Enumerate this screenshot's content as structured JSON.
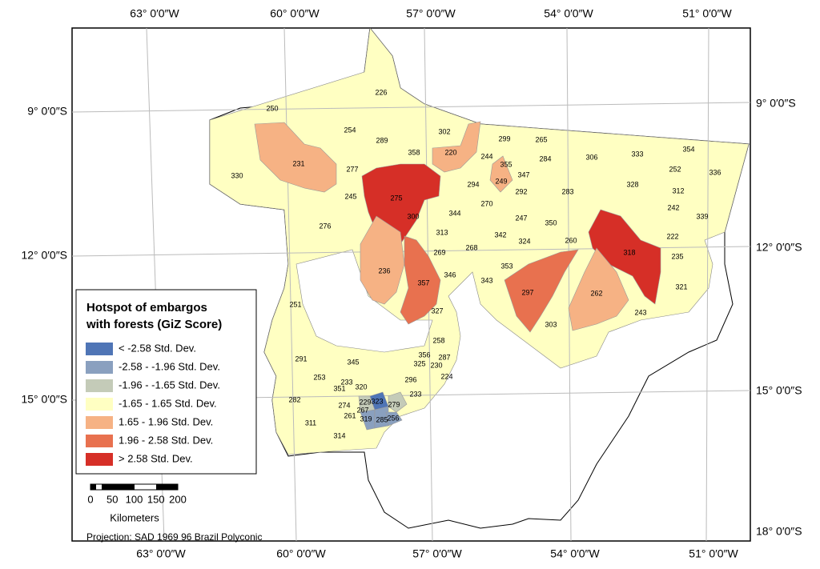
{
  "title_lines": [
    "Hotspot of embargos",
    "with forests (GiZ Score)"
  ],
  "legend": [
    {
      "label": "< -2.58 Std. Dev.",
      "color": "#4f75b6"
    },
    {
      "label": "-2.58 - -1.96 Std. Dev.",
      "color": "#8aa0bf"
    },
    {
      "label": "-1.96 - -1.65 Std. Dev.",
      "color": "#c4cbb8"
    },
    {
      "label": "-1.65 - 1.65 Std. Dev.",
      "color": "#ffffc2"
    },
    {
      "label": "1.65 - 1.96 Std. Dev.",
      "color": "#f6b284"
    },
    {
      "label": "1.96 - 2.58 Std. Dev.",
      "color": "#e8714f"
    },
    {
      "label": "> 2.58 Std. Dev.",
      "color": "#d62f27"
    }
  ],
  "graticule": {
    "top": [
      "63° 0′0″W",
      "60° 0′0″W",
      "57° 0′0″W",
      "54° 0′0″W",
      "51° 0′0″W"
    ],
    "bottom": [
      "63° 0′0″W",
      "60° 0′0″W",
      "57° 0′0″W",
      "54° 0′0″W",
      "51° 0′0″W"
    ],
    "left": [
      "9° 0′0″S",
      "12° 0′0″S",
      "15° 0′0″S"
    ],
    "right": [
      "9° 0′0″S",
      "12° 0′0″S",
      "15° 0′0″S",
      "18° 0′0″S"
    ]
  },
  "scale": {
    "ticks": [
      0,
      50,
      100,
      150,
      200
    ],
    "unit": "Kilometers"
  },
  "projection": "Projection: SAD 1969 96 Brazil Polyconic",
  "regions": [
    {
      "label": 226,
      "class": 3
    },
    {
      "label": 250,
      "class": 3
    },
    {
      "label": 254,
      "class": 3
    },
    {
      "label": 302,
      "class": 3
    },
    {
      "label": 289,
      "class": 3
    },
    {
      "label": 358,
      "class": 3
    },
    {
      "label": 220,
      "class": 4
    },
    {
      "label": 299,
      "class": 3
    },
    {
      "label": 265,
      "class": 3
    },
    {
      "label": 306,
      "class": 3
    },
    {
      "label": 333,
      "class": 3
    },
    {
      "label": 354,
      "class": 3
    },
    {
      "label": 244,
      "class": 3
    },
    {
      "label": 355,
      "class": 3
    },
    {
      "label": 284,
      "class": 3
    },
    {
      "label": 252,
      "class": 3
    },
    {
      "label": 336,
      "class": 3
    },
    {
      "label": 330,
      "class": 3
    },
    {
      "label": 231,
      "class": 4
    },
    {
      "label": 277,
      "class": 3
    },
    {
      "label": 347,
      "class": 3
    },
    {
      "label": 249,
      "class": 4
    },
    {
      "label": 294,
      "class": 3
    },
    {
      "label": 328,
      "class": 3
    },
    {
      "label": 312,
      "class": 3
    },
    {
      "label": 275,
      "class": 6
    },
    {
      "label": 292,
      "class": 3
    },
    {
      "label": 283,
      "class": 3
    },
    {
      "label": 245,
      "class": 3
    },
    {
      "label": 270,
      "class": 3
    },
    {
      "label": 242,
      "class": 3
    },
    {
      "label": 339,
      "class": 3
    },
    {
      "label": 300,
      "class": 3
    },
    {
      "label": 344,
      "class": 3
    },
    {
      "label": 247,
      "class": 3
    },
    {
      "label": 350,
      "class": 3
    },
    {
      "label": 276,
      "class": 3
    },
    {
      "label": 313,
      "class": 3
    },
    {
      "label": 342,
      "class": 3
    },
    {
      "label": 222,
      "class": 3
    },
    {
      "label": 260,
      "class": 3
    },
    {
      "label": 324,
      "class": 3
    },
    {
      "label": 268,
      "class": 3
    },
    {
      "label": 269,
      "class": 3
    },
    {
      "label": 318,
      "class": 6
    },
    {
      "label": 235,
      "class": 3
    },
    {
      "label": 236,
      "class": 4
    },
    {
      "label": 353,
      "class": 3
    },
    {
      "label": 346,
      "class": 3
    },
    {
      "label": 343,
      "class": 3
    },
    {
      "label": 357,
      "class": 5
    },
    {
      "label": 321,
      "class": 3
    },
    {
      "label": 297,
      "class": 5
    },
    {
      "label": 262,
      "class": 4
    },
    {
      "label": 251,
      "class": 3
    },
    {
      "label": 327,
      "class": 3
    },
    {
      "label": 243,
      "class": 3
    },
    {
      "label": 303,
      "class": 3
    },
    {
      "label": 258,
      "class": 3
    },
    {
      "label": 345,
      "class": 3
    },
    {
      "label": 356,
      "class": 3
    },
    {
      "label": 287,
      "class": 3
    },
    {
      "label": 291,
      "class": 3
    },
    {
      "label": 325,
      "class": 3
    },
    {
      "label": 230,
      "class": 3
    },
    {
      "label": 224,
      "class": 3
    },
    {
      "label": 253,
      "class": 3
    },
    {
      "label": 296,
      "class": 3
    },
    {
      "label": 233,
      "class": 3
    },
    {
      "label": 233,
      "class": 3
    },
    {
      "label": 282,
      "class": 3
    },
    {
      "label": 229,
      "class": 2
    },
    {
      "label": 323,
      "class": 0
    },
    {
      "label": 279,
      "class": 2
    },
    {
      "label": 274,
      "class": 3
    },
    {
      "label": 267,
      "class": 3
    },
    {
      "label": 320,
      "class": 3
    },
    {
      "label": 351,
      "class": 3
    },
    {
      "label": 261,
      "class": 3
    },
    {
      "label": 319,
      "class": 1
    },
    {
      "label": 285,
      "class": 1
    },
    {
      "label": 256,
      "class": 1
    },
    {
      "label": 311,
      "class": 3
    },
    {
      "label": 314,
      "class": 3
    }
  ]
}
